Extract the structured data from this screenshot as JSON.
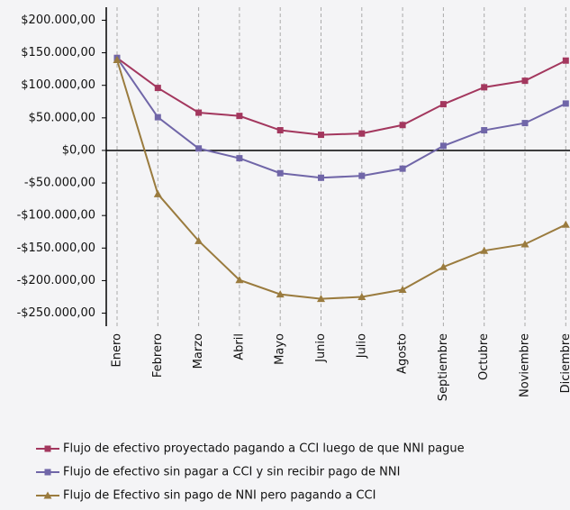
{
  "chart_data": {
    "type": "line",
    "categories": [
      "Enero",
      "Febrero",
      "Marzo",
      "Abril",
      "Mayo",
      "Junio",
      "Julio",
      "Agosto",
      "Septiembre",
      "Octubre",
      "Noviembre",
      "Diciembre"
    ],
    "series": [
      {
        "name": "Flujo de efectivo proyectado pagando a CCI luego de que NNI pague",
        "color": "#a3375e",
        "marker": "square",
        "values": [
          142000,
          96000,
          58000,
          53000,
          31000,
          24000,
          26000,
          39000,
          71000,
          97000,
          107000,
          138000
        ]
      },
      {
        "name": "Flujo de efectivo sin pagar a CCI y sin recibir pago de NNI",
        "color": "#7066a8",
        "marker": "square",
        "values": [
          142000,
          51000,
          3000,
          -12000,
          -35000,
          -42000,
          -39000,
          -28000,
          7000,
          31000,
          42000,
          72000
        ]
      },
      {
        "name": "Flujo de Efectivo sin pago de NNI pero pagando a CCI",
        "color": "#9a7b3e",
        "marker": "triangle",
        "values": [
          139000,
          -67000,
          -139000,
          -199000,
          -221000,
          -228000,
          -225000,
          -214000,
          -179000,
          -154000,
          -144000,
          -114000
        ]
      }
    ],
    "ylim": [
      -270000,
      220000
    ],
    "yticks": [
      {
        "value": 200000,
        "label": "$200.000,00"
      },
      {
        "value": 150000,
        "label": "$150.000,00"
      },
      {
        "value": 100000,
        "label": "$100.000,00"
      },
      {
        "value": 50000,
        "label": "$50.000,00"
      },
      {
        "value": 0,
        "label": "$0,00"
      },
      {
        "value": -50000,
        "label": "-$50.000,00"
      },
      {
        "value": -100000,
        "label": "-$100.000,00"
      },
      {
        "value": -150000,
        "label": "-$150.000,00"
      },
      {
        "value": -200000,
        "label": "-$200.000,00"
      },
      {
        "value": -250000,
        "label": "-$250.000,00"
      }
    ],
    "xgrid": true,
    "legend": "bottom"
  }
}
